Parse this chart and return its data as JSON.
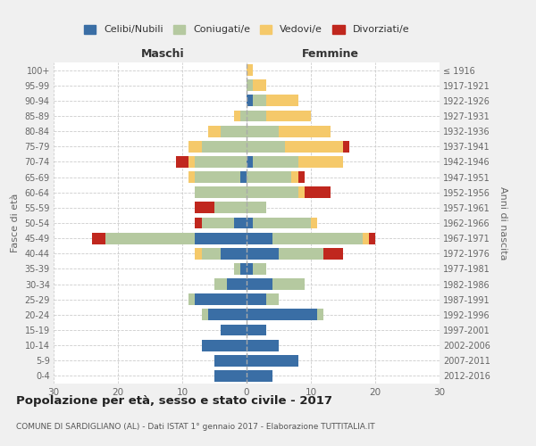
{
  "age_groups": [
    "0-4",
    "5-9",
    "10-14",
    "15-19",
    "20-24",
    "25-29",
    "30-34",
    "35-39",
    "40-44",
    "45-49",
    "50-54",
    "55-59",
    "60-64",
    "65-69",
    "70-74",
    "75-79",
    "80-84",
    "85-89",
    "90-94",
    "95-99",
    "100+"
  ],
  "birth_years": [
    "2012-2016",
    "2007-2011",
    "2002-2006",
    "1997-2001",
    "1992-1996",
    "1987-1991",
    "1982-1986",
    "1977-1981",
    "1972-1976",
    "1967-1971",
    "1962-1966",
    "1957-1961",
    "1952-1956",
    "1947-1951",
    "1942-1946",
    "1937-1941",
    "1932-1936",
    "1927-1931",
    "1922-1926",
    "1917-1921",
    "≤ 1916"
  ],
  "male": {
    "celibi": [
      5,
      5,
      7,
      4,
      6,
      8,
      3,
      1,
      4,
      8,
      2,
      0,
      0,
      1,
      0,
      0,
      0,
      0,
      0,
      0,
      0
    ],
    "coniugati": [
      0,
      0,
      0,
      0,
      1,
      1,
      2,
      1,
      3,
      14,
      5,
      5,
      8,
      7,
      8,
      7,
      4,
      1,
      0,
      0,
      0
    ],
    "vedovi": [
      0,
      0,
      0,
      0,
      0,
      0,
      0,
      0,
      1,
      0,
      0,
      0,
      0,
      1,
      1,
      2,
      2,
      1,
      0,
      0,
      0
    ],
    "divorziati": [
      0,
      0,
      0,
      0,
      0,
      0,
      0,
      0,
      0,
      2,
      1,
      3,
      0,
      0,
      2,
      0,
      0,
      0,
      0,
      0,
      0
    ]
  },
  "female": {
    "nubili": [
      4,
      8,
      5,
      3,
      11,
      3,
      4,
      1,
      5,
      4,
      1,
      0,
      0,
      0,
      1,
      0,
      0,
      0,
      1,
      0,
      0
    ],
    "coniugate": [
      0,
      0,
      0,
      0,
      1,
      2,
      5,
      2,
      7,
      14,
      9,
      3,
      8,
      7,
      7,
      6,
      5,
      3,
      2,
      1,
      0
    ],
    "vedove": [
      0,
      0,
      0,
      0,
      0,
      0,
      0,
      0,
      0,
      1,
      1,
      0,
      1,
      1,
      7,
      9,
      8,
      7,
      5,
      2,
      1
    ],
    "divorziate": [
      0,
      0,
      0,
      0,
      0,
      0,
      0,
      0,
      3,
      1,
      0,
      0,
      4,
      1,
      0,
      1,
      0,
      0,
      0,
      0,
      0
    ]
  },
  "colors": {
    "celibi": "#3a6ea5",
    "coniugati": "#b5c9a0",
    "vedovi": "#f5c96a",
    "divorziati": "#c0271e"
  },
  "xlim": 30,
  "title": "Popolazione per età, sesso e stato civile - 2017",
  "subtitle": "COMUNE DI SARDIGLIANO (AL) - Dati ISTAT 1° gennaio 2017 - Elaborazione TUTTITALIA.IT",
  "ylabel_left": "Fasce di età",
  "ylabel_right": "Anni di nascita",
  "xlabel_male": "Maschi",
  "xlabel_female": "Femmine",
  "legend_labels": [
    "Celibi/Nubili",
    "Coniugati/e",
    "Vedovi/e",
    "Divorziati/e"
  ],
  "bg_color": "#f0f0f0",
  "plot_bg": "#ffffff"
}
